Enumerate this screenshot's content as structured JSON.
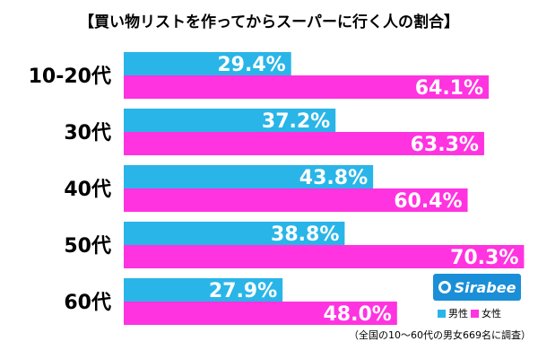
{
  "chart_data": {
    "type": "bar",
    "orientation": "horizontal",
    "title": "【買い物リストを作ってからスーパーに行く人の割合】",
    "categories": [
      "10-20代",
      "30代",
      "40代",
      "50代",
      "60代"
    ],
    "series": [
      {
        "name": "男性",
        "color": "#29b5e8",
        "values": [
          29.4,
          37.2,
          43.8,
          38.8,
          27.9
        ]
      },
      {
        "name": "女性",
        "color": "#ff33e0",
        "values": [
          64.1,
          63.3,
          60.4,
          70.3,
          48.0
        ]
      }
    ],
    "value_suffix": "%",
    "xlim": [
      0,
      100
    ],
    "grid": false,
    "legend_position": "bottom-right"
  },
  "logo": {
    "text": "Sirabee",
    "color": "#1a8fd8"
  },
  "footnote": "（全国の10〜60代の男女669名に調査）"
}
